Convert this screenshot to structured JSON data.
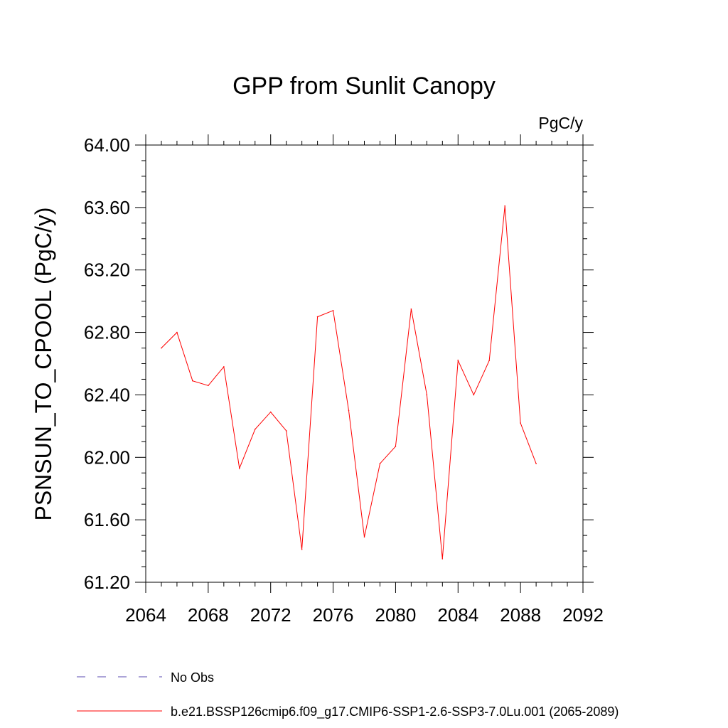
{
  "chart_data": {
    "type": "line",
    "title": "GPP from Sunlit Canopy",
    "units": "PgC/y",
    "ylabel": "PSNSUN_TO_CPOOL  (PgC/y)",
    "xlabel": "",
    "xlim": [
      2064,
      2092
    ],
    "ylim": [
      61.2,
      64.0
    ],
    "xticks": [
      2064,
      2068,
      2072,
      2076,
      2080,
      2084,
      2088,
      2092
    ],
    "yticks": [
      "61.20",
      "61.60",
      "62.00",
      "62.40",
      "62.80",
      "63.20",
      "63.60",
      "64.00"
    ],
    "grid": false,
    "legend_position": "bottom",
    "series": [
      {
        "name": "b.e21.BSSP126cmip6.f09_g17.CMIP6-SSP1-2.6-SSP3-7.0Lu.001 (2065-2089)",
        "color": "#ff0000",
        "x": [
          2065,
          2066,
          2067,
          2068,
          2069,
          2070,
          2071,
          2072,
          2073,
          2074,
          2075,
          2076,
          2077,
          2078,
          2079,
          2080,
          2081,
          2082,
          2083,
          2084,
          2085,
          2086,
          2087,
          2088,
          2089
        ],
        "y": [
          62.7,
          62.8,
          62.49,
          62.46,
          62.58,
          61.93,
          62.18,
          62.29,
          62.17,
          61.41,
          62.9,
          62.94,
          62.3,
          61.49,
          61.96,
          62.07,
          62.95,
          62.4,
          61.35,
          62.62,
          62.4,
          62.62,
          63.61,
          62.22,
          61.96
        ]
      }
    ],
    "legend": [
      {
        "label": "No Obs",
        "color": "#5a4ab0",
        "style": "dashed"
      },
      {
        "label": "b.e21.BSSP126cmip6.f09_g17.CMIP6-SSP1-2.6-SSP3-7.0Lu.001 (2065-2089)",
        "color": "#ff0000",
        "style": "solid"
      }
    ]
  }
}
